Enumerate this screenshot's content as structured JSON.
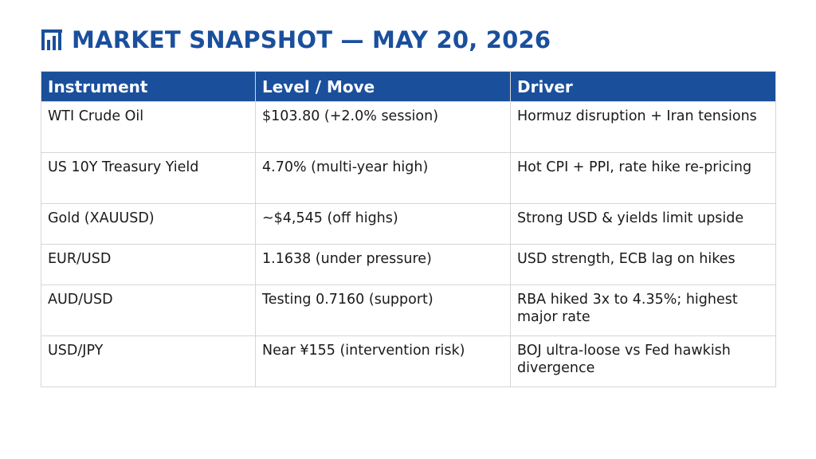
{
  "slide": {
    "title": "MARKET SNAPSHOT — MAY 20, 2026",
    "title_icon": "bar-chart-icon",
    "accent_color": "#1a4f9c"
  },
  "table": {
    "headers": [
      "Instrument",
      "Level / Move",
      "Driver"
    ],
    "rows": [
      [
        "WTI Crude Oil",
        "$103.80 (+2.0% session)",
        "Hormuz disruption + Iran tensions"
      ],
      [
        "US 10Y Treasury Yield",
        "4.70% (multi-year high)",
        "Hot CPI + PPI, rate hike re-pricing"
      ],
      [
        "Gold (XAUUSD)",
        "~$4,545 (off highs)",
        "Strong USD & yields limit upside"
      ],
      [
        "EUR/USD",
        "1.1638 (under pressure)",
        "USD strength, ECB lag on hikes"
      ],
      [
        "AUD/USD",
        "Testing 0.7160 (support)",
        "RBA hiked 3x to 4.35%; highest major rate"
      ],
      [
        "USD/JPY",
        "Near ¥155 (intervention risk)",
        "BOJ ultra-loose vs Fed hawkish divergence"
      ]
    ]
  }
}
